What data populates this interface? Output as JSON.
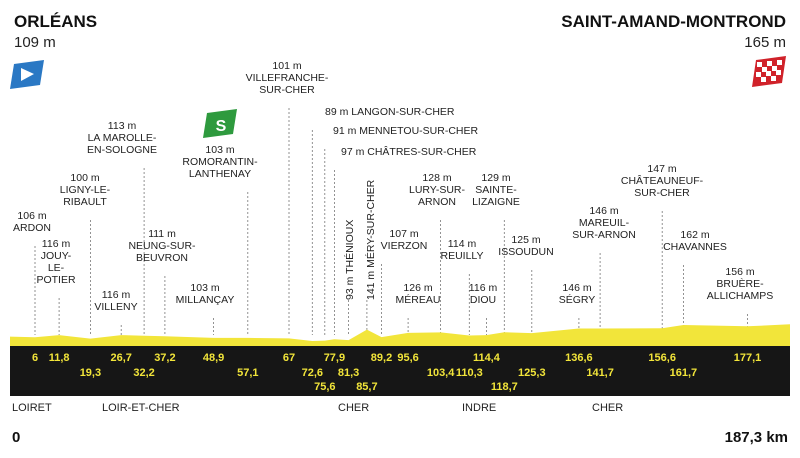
{
  "start": {
    "name": "ORLÉANS",
    "altitude": "109 m"
  },
  "finish": {
    "name": "SAINT-AMAND-MONTROND",
    "altitude": "165 m"
  },
  "sprint_badge": "S",
  "axis": {
    "start_label": "0",
    "end_label": "187,3 km"
  },
  "colors": {
    "profile": "#f2e53a",
    "band": "#161616",
    "start_flag": "#2a78c4",
    "finish_flag": "#d0222a",
    "sprint": "#2e9a3e"
  },
  "waypoints": [
    {
      "km": 6,
      "km_label": "6",
      "label": [
        "106 m",
        "ARDON"
      ]
    },
    {
      "km": 11.8,
      "km_label": "11,8",
      "label": [
        "116 m",
        "JOUY-",
        "LE-",
        "POTIER"
      ]
    },
    {
      "km": 19.3,
      "km_label": "19,3",
      "label": [
        "100 m",
        "LIGNY-LE-",
        "RIBAULT"
      ]
    },
    {
      "km": 26.7,
      "km_label": "26,7",
      "label": [
        "116 m",
        "VILLENY"
      ]
    },
    {
      "km": 32.2,
      "km_label": "32,2",
      "label": [
        "113 m",
        "LA MAROLLE-",
        "EN-SOLOGNE"
      ]
    },
    {
      "km": 37.2,
      "km_label": "37,2",
      "label": [
        "111 m",
        "NEUNG-SUR-",
        "BEUVRON"
      ]
    },
    {
      "km": 48.9,
      "km_label": "48,9",
      "label": [
        "103 m",
        "MILLANÇAY"
      ]
    },
    {
      "km": 57.1,
      "km_label": "57,1",
      "label": [
        "103 m",
        "ROMORANTIN-",
        "LANTHENAY"
      ],
      "sprint": true
    },
    {
      "km": 67,
      "km_label": "67",
      "label": [
        "101 m",
        "VILLEFRANCHE-",
        "SUR-CHER"
      ]
    },
    {
      "km": 72.6,
      "km_label": "72,6",
      "label": [
        "89 m LANGON-SUR-CHER"
      ]
    },
    {
      "km": 75.6,
      "km_label": "75,6",
      "label": [
        "91 m MENNETOU-SUR-CHER"
      ]
    },
    {
      "km": 77.9,
      "km_label": "77,9",
      "label": [
        "97 m CHÂTRES-SUR-CHER"
      ]
    },
    {
      "km": 81.3,
      "km_label": "81,3",
      "label": [
        "93 m THÉNIOUX"
      ]
    },
    {
      "km": 85.7,
      "km_label": "85,7",
      "label": [
        "141 m MÉRY-SUR-CHER"
      ]
    },
    {
      "km": 89.2,
      "km_label": "89,2",
      "label": [
        "107 m",
        "VIERZON"
      ]
    },
    {
      "km": 95.6,
      "km_label": "95,6",
      "label": [
        "126 m",
        "MÉREAU"
      ]
    },
    {
      "km": 103.4,
      "km_label": "103,4",
      "label": [
        "128 m",
        "LURY-SUR-",
        "ARNON"
      ]
    },
    {
      "km": 110.3,
      "km_label": "110,3",
      "label": [
        "114 m",
        "REUILLY"
      ]
    },
    {
      "km": 114.4,
      "km_label": "114,4",
      "label": [
        "116 m",
        "DIOU"
      ]
    },
    {
      "km": 118.7,
      "km_label": "118,7",
      "label": [
        "129 m",
        "SAINTE-",
        "LIZAIGNE"
      ]
    },
    {
      "km": 125.3,
      "km_label": "125,3",
      "label": [
        "125 m",
        "ISSOUDUN"
      ]
    },
    {
      "km": 136.6,
      "km_label": "136,6",
      "label": [
        "146 m",
        "SÉGRY"
      ]
    },
    {
      "km": 141.7,
      "km_label": "141,7",
      "label": [
        "146 m",
        "MAREUIL-",
        "SUR-ARNON"
      ]
    },
    {
      "km": 156.6,
      "km_label": "156,6",
      "label": [
        "147 m",
        "CHÂTEAUNEUF-",
        "SUR-CHER"
      ]
    },
    {
      "km": 161.7,
      "km_label": "161,7",
      "label": [
        "162 m",
        "CHAVANNES"
      ]
    },
    {
      "km": 177.1,
      "km_label": "177,1",
      "label": [
        "156 m",
        "BRUÈRE-",
        "ALLICHAMPS"
      ]
    }
  ],
  "departments": [
    "LOIRET",
    "LOIR-ET-CHER",
    "CHER",
    "INDRE",
    "CHER"
  ]
}
